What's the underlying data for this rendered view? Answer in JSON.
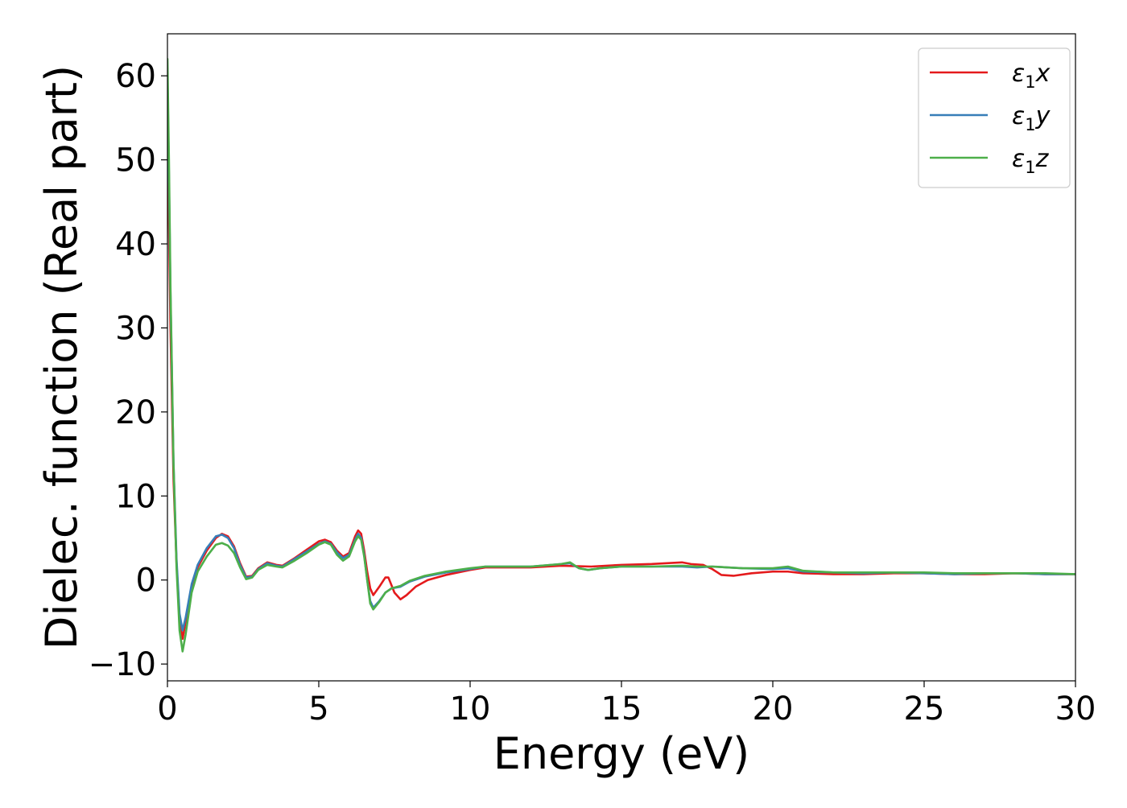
{
  "chart_data": {
    "type": "line",
    "title": "",
    "xlabel": "Energy (eV)",
    "ylabel": "Dielec. function (Real part)",
    "xlim": [
      0,
      30
    ],
    "ylim": [
      -12,
      65
    ],
    "x_ticks": [
      {
        "value": 0,
        "label": "0"
      },
      {
        "value": 5,
        "label": "5"
      },
      {
        "value": 10,
        "label": "10"
      },
      {
        "value": 15,
        "label": "15"
      },
      {
        "value": 20,
        "label": "20"
      },
      {
        "value": 25,
        "label": "25"
      },
      {
        "value": 30,
        "label": "30"
      }
    ],
    "y_ticks": [
      {
        "value": -10,
        "label": "−10"
      },
      {
        "value": 0,
        "label": "0"
      },
      {
        "value": 10,
        "label": "10"
      },
      {
        "value": 20,
        "label": "20"
      },
      {
        "value": 30,
        "label": "30"
      },
      {
        "value": 40,
        "label": "40"
      },
      {
        "value": 50,
        "label": "50"
      },
      {
        "value": 60,
        "label": "60"
      }
    ],
    "grid": false,
    "legend": {
      "position": "top-right"
    },
    "series": [
      {
        "name": "x",
        "color": "#e41a1c",
        "points": [
          [
            0.0,
            52.0
          ],
          [
            0.05,
            42.0
          ],
          [
            0.1,
            30.0
          ],
          [
            0.2,
            12.0
          ],
          [
            0.3,
            2.0
          ],
          [
            0.4,
            -4.5
          ],
          [
            0.5,
            -7.0
          ],
          [
            0.6,
            -5.0
          ],
          [
            0.8,
            -1.0
          ],
          [
            1.0,
            1.5
          ],
          [
            1.3,
            3.5
          ],
          [
            1.6,
            5.0
          ],
          [
            1.8,
            5.5
          ],
          [
            2.0,
            5.2
          ],
          [
            2.2,
            4.0
          ],
          [
            2.4,
            2.0
          ],
          [
            2.6,
            0.4
          ],
          [
            2.8,
            0.5
          ],
          [
            3.0,
            1.4
          ],
          [
            3.3,
            2.1
          ],
          [
            3.6,
            1.8
          ],
          [
            3.8,
            1.7
          ],
          [
            4.2,
            2.6
          ],
          [
            4.6,
            3.6
          ],
          [
            5.0,
            4.6
          ],
          [
            5.2,
            4.8
          ],
          [
            5.4,
            4.5
          ],
          [
            5.6,
            3.5
          ],
          [
            5.8,
            2.8
          ],
          [
            6.0,
            3.2
          ],
          [
            6.2,
            5.2
          ],
          [
            6.3,
            5.9
          ],
          [
            6.4,
            5.5
          ],
          [
            6.5,
            3.5
          ],
          [
            6.6,
            1.0
          ],
          [
            6.7,
            -1.0
          ],
          [
            6.8,
            -1.8
          ],
          [
            7.0,
            -0.8
          ],
          [
            7.2,
            0.3
          ],
          [
            7.3,
            0.3
          ],
          [
            7.5,
            -1.5
          ],
          [
            7.7,
            -2.3
          ],
          [
            7.9,
            -1.8
          ],
          [
            8.2,
            -0.8
          ],
          [
            8.6,
            0.0
          ],
          [
            9.2,
            0.6
          ],
          [
            10.0,
            1.2
          ],
          [
            10.5,
            1.5
          ],
          [
            11.0,
            1.5
          ],
          [
            12.0,
            1.5
          ],
          [
            13.0,
            1.7
          ],
          [
            14.0,
            1.6
          ],
          [
            15.0,
            1.8
          ],
          [
            16.0,
            1.9
          ],
          [
            16.5,
            2.0
          ],
          [
            17.0,
            2.1
          ],
          [
            17.3,
            1.9
          ],
          [
            17.7,
            1.8
          ],
          [
            18.0,
            1.3
          ],
          [
            18.3,
            0.6
          ],
          [
            18.7,
            0.5
          ],
          [
            19.3,
            0.8
          ],
          [
            20.0,
            1.0
          ],
          [
            20.5,
            1.0
          ],
          [
            21.0,
            0.8
          ],
          [
            22.0,
            0.7
          ],
          [
            23.0,
            0.7
          ],
          [
            24.0,
            0.8
          ],
          [
            25.0,
            0.8
          ],
          [
            26.0,
            0.7
          ],
          [
            27.0,
            0.7
          ],
          [
            28.0,
            0.8
          ],
          [
            29.0,
            0.7
          ],
          [
            30.0,
            0.7
          ]
        ]
      },
      {
        "name": "y",
        "color": "#377eb8",
        "points": [
          [
            0.0,
            60.0
          ],
          [
            0.05,
            48.0
          ],
          [
            0.1,
            34.0
          ],
          [
            0.2,
            14.0
          ],
          [
            0.3,
            2.5
          ],
          [
            0.4,
            -4.0
          ],
          [
            0.5,
            -6.0
          ],
          [
            0.6,
            -4.5
          ],
          [
            0.8,
            -0.5
          ],
          [
            1.0,
            1.8
          ],
          [
            1.3,
            3.8
          ],
          [
            1.6,
            5.2
          ],
          [
            1.8,
            5.4
          ],
          [
            2.0,
            5.0
          ],
          [
            2.2,
            3.8
          ],
          [
            2.4,
            1.8
          ],
          [
            2.6,
            0.3
          ],
          [
            2.8,
            0.4
          ],
          [
            3.0,
            1.3
          ],
          [
            3.3,
            2.0
          ],
          [
            3.6,
            1.7
          ],
          [
            3.8,
            1.6
          ],
          [
            4.2,
            2.5
          ],
          [
            4.6,
            3.4
          ],
          [
            5.0,
            4.3
          ],
          [
            5.2,
            4.6
          ],
          [
            5.4,
            4.3
          ],
          [
            5.6,
            3.3
          ],
          [
            5.8,
            2.6
          ],
          [
            6.0,
            3.0
          ],
          [
            6.2,
            4.8
          ],
          [
            6.3,
            5.5
          ],
          [
            6.4,
            5.0
          ],
          [
            6.5,
            3.0
          ],
          [
            6.6,
            0.0
          ],
          [
            6.7,
            -2.5
          ],
          [
            6.8,
            -3.3
          ],
          [
            7.0,
            -2.5
          ],
          [
            7.2,
            -1.5
          ],
          [
            7.4,
            -1.0
          ],
          [
            7.7,
            -0.8
          ],
          [
            8.0,
            -0.2
          ],
          [
            8.5,
            0.4
          ],
          [
            9.2,
            0.9
          ],
          [
            10.0,
            1.3
          ],
          [
            10.5,
            1.6
          ],
          [
            11.0,
            1.6
          ],
          [
            12.0,
            1.6
          ],
          [
            13.0,
            1.9
          ],
          [
            13.3,
            2.0
          ],
          [
            13.6,
            1.4
          ],
          [
            13.9,
            1.2
          ],
          [
            14.3,
            1.4
          ],
          [
            15.0,
            1.6
          ],
          [
            16.0,
            1.6
          ],
          [
            17.0,
            1.6
          ],
          [
            17.5,
            1.5
          ],
          [
            18.0,
            1.6
          ],
          [
            18.5,
            1.5
          ],
          [
            19.0,
            1.4
          ],
          [
            20.0,
            1.3
          ],
          [
            20.5,
            1.4
          ],
          [
            21.0,
            1.0
          ],
          [
            22.0,
            0.9
          ],
          [
            23.0,
            0.8
          ],
          [
            24.0,
            0.9
          ],
          [
            25.0,
            0.8
          ],
          [
            26.0,
            0.7
          ],
          [
            27.0,
            0.8
          ],
          [
            28.0,
            0.8
          ],
          [
            29.0,
            0.7
          ],
          [
            30.0,
            0.7
          ]
        ]
      },
      {
        "name": "z",
        "color": "#4daf4a",
        "points": [
          [
            0.0,
            62.0
          ],
          [
            0.05,
            50.0
          ],
          [
            0.1,
            35.0
          ],
          [
            0.2,
            14.0
          ],
          [
            0.3,
            1.5
          ],
          [
            0.4,
            -6.0
          ],
          [
            0.5,
            -8.5
          ],
          [
            0.6,
            -6.5
          ],
          [
            0.8,
            -1.5
          ],
          [
            1.0,
            1.0
          ],
          [
            1.3,
            2.8
          ],
          [
            1.6,
            4.2
          ],
          [
            1.8,
            4.4
          ],
          [
            2.0,
            4.1
          ],
          [
            2.2,
            3.2
          ],
          [
            2.4,
            1.5
          ],
          [
            2.6,
            0.1
          ],
          [
            2.8,
            0.3
          ],
          [
            3.0,
            1.2
          ],
          [
            3.3,
            1.8
          ],
          [
            3.6,
            1.6
          ],
          [
            3.8,
            1.5
          ],
          [
            4.2,
            2.3
          ],
          [
            4.6,
            3.2
          ],
          [
            5.0,
            4.2
          ],
          [
            5.2,
            4.5
          ],
          [
            5.4,
            4.2
          ],
          [
            5.6,
            3.0
          ],
          [
            5.8,
            2.3
          ],
          [
            6.0,
            2.8
          ],
          [
            6.2,
            4.6
          ],
          [
            6.3,
            5.2
          ],
          [
            6.4,
            4.8
          ],
          [
            6.5,
            2.8
          ],
          [
            6.6,
            0.0
          ],
          [
            6.7,
            -2.8
          ],
          [
            6.8,
            -3.5
          ],
          [
            7.0,
            -2.6
          ],
          [
            7.2,
            -1.5
          ],
          [
            7.4,
            -1.0
          ],
          [
            7.7,
            -0.7
          ],
          [
            8.0,
            -0.1
          ],
          [
            8.5,
            0.5
          ],
          [
            9.2,
            1.0
          ],
          [
            10.0,
            1.4
          ],
          [
            10.5,
            1.6
          ],
          [
            11.0,
            1.6
          ],
          [
            12.0,
            1.6
          ],
          [
            13.0,
            1.9
          ],
          [
            13.3,
            2.1
          ],
          [
            13.6,
            1.4
          ],
          [
            13.9,
            1.2
          ],
          [
            14.3,
            1.4
          ],
          [
            15.0,
            1.6
          ],
          [
            16.0,
            1.6
          ],
          [
            17.0,
            1.7
          ],
          [
            17.5,
            1.6
          ],
          [
            18.0,
            1.6
          ],
          [
            18.5,
            1.5
          ],
          [
            19.0,
            1.4
          ],
          [
            20.0,
            1.4
          ],
          [
            20.5,
            1.6
          ],
          [
            21.0,
            1.1
          ],
          [
            22.0,
            0.9
          ],
          [
            23.0,
            0.9
          ],
          [
            24.0,
            0.9
          ],
          [
            25.0,
            0.9
          ],
          [
            26.0,
            0.8
          ],
          [
            27.0,
            0.8
          ],
          [
            28.0,
            0.8
          ],
          [
            29.0,
            0.8
          ],
          [
            30.0,
            0.7
          ]
        ]
      }
    ]
  }
}
